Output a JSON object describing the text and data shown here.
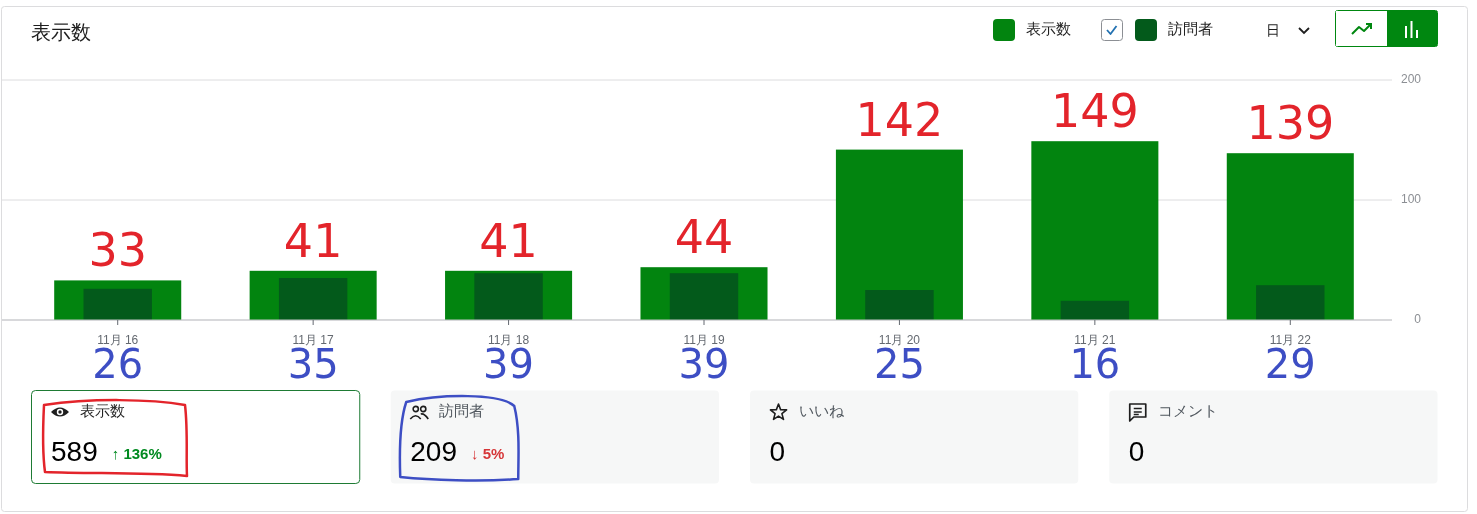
{
  "chart_data": [
    {
      "type": "bar",
      "title": "表示数",
      "categories": [
        "11月 16",
        "11月 17",
        "11月 18",
        "11月 19",
        "11月 20",
        "11月 21",
        "11月 22"
      ],
      "series": [
        {
          "name": "表示数",
          "color": "#02840f",
          "values": [
            33,
            41,
            41,
            44,
            142,
            149,
            139
          ],
          "value_labels": [
            "33",
            "41",
            "41",
            "44",
            "142",
            "149",
            "139"
          ]
        },
        {
          "name": "訪問者",
          "color": "#035a1b",
          "values": [
            26,
            35,
            39,
            39,
            25,
            16,
            29
          ],
          "value_labels": [
            "26",
            "35",
            "39",
            "39",
            "25",
            "16",
            "29"
          ]
        }
      ],
      "ylim": [
        0,
        200
      ],
      "yticks": [
        0,
        100,
        200
      ],
      "grid": "y",
      "legend": "top right",
      "annotations": [
        "日"
      ]
    },
    {
      "type": "other",
      "categories": [
        "表示数",
        "訪問者",
        "いいね",
        "コメント"
      ],
      "values": [
        589,
        209,
        0,
        0
      ],
      "data_labels": true,
      "annotations": [
        "↑ 136%",
        "↓ 5%"
      ],
      "colors": [
        "#ffffff",
        "#f6f7f7",
        "#f6f7f7",
        "#f6f7f7"
      ]
    }
  ]
}
